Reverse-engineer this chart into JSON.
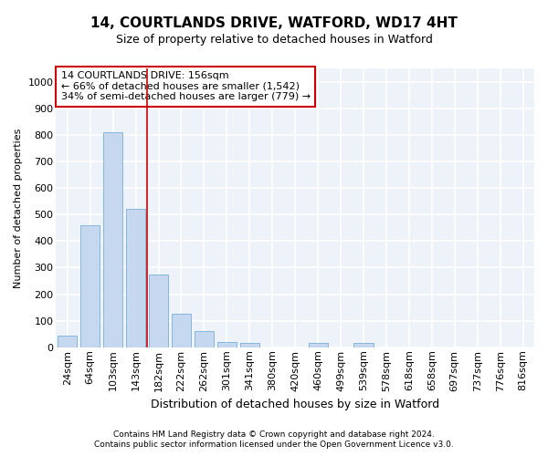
{
  "title1": "14, COURTLANDS DRIVE, WATFORD, WD17 4HT",
  "title2": "Size of property relative to detached houses in Watford",
  "xlabel": "Distribution of detached houses by size in Watford",
  "ylabel": "Number of detached properties",
  "footnote1": "Contains HM Land Registry data © Crown copyright and database right 2024.",
  "footnote2": "Contains public sector information licensed under the Open Government Licence v3.0.",
  "categories": [
    "24sqm",
    "64sqm",
    "103sqm",
    "143sqm",
    "182sqm",
    "222sqm",
    "262sqm",
    "301sqm",
    "341sqm",
    "380sqm",
    "420sqm",
    "460sqm",
    "499sqm",
    "539sqm",
    "578sqm",
    "618sqm",
    "658sqm",
    "697sqm",
    "737sqm",
    "776sqm",
    "816sqm"
  ],
  "values": [
    45,
    460,
    810,
    520,
    275,
    125,
    60,
    20,
    15,
    0,
    0,
    15,
    0,
    15,
    0,
    0,
    0,
    0,
    0,
    0,
    0
  ],
  "bar_color": "#c5d8ef",
  "bar_edge_color": "#7aafd4",
  "background_color": "#eef2f9",
  "grid_color": "#ffffff",
  "vline_color": "#cc0000",
  "vline_x_index": 3,
  "annotation_line1": "14 COURTLANDS DRIVE: 156sqm",
  "annotation_line2": "← 66% of detached houses are smaller (1,542)",
  "annotation_line3": "34% of semi-detached houses are larger (779) →",
  "annotation_box_color": "#cc0000",
  "ylim": [
    0,
    1050
  ],
  "yticks": [
    0,
    100,
    200,
    300,
    400,
    500,
    600,
    700,
    800,
    900,
    1000
  ],
  "title1_fontsize": 11,
  "title2_fontsize": 9,
  "tick_fontsize": 8,
  "ylabel_fontsize": 8,
  "xlabel_fontsize": 9,
  "footnote_fontsize": 6.5
}
